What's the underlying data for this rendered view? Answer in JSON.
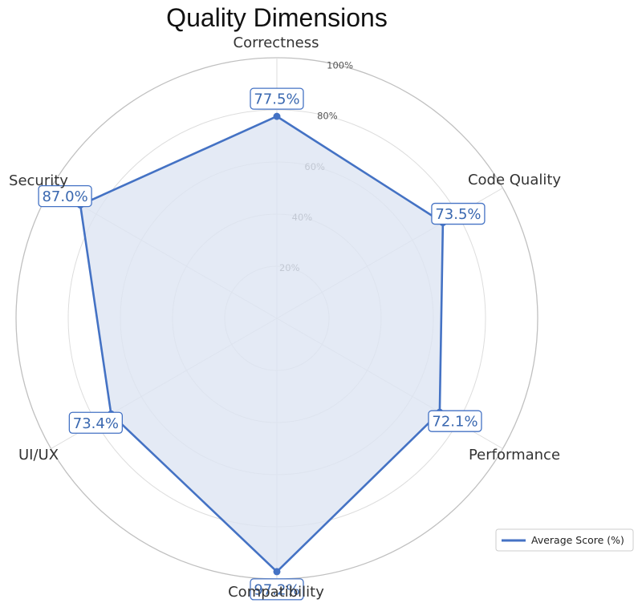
{
  "chart_data": {
    "type": "radar",
    "title": "Quality Dimensions",
    "categories": [
      "Correctness",
      "Code Quality",
      "Performance",
      "Compatibility",
      "UI/UX",
      "Security"
    ],
    "series": [
      {
        "name": "Average Score (%)",
        "values": [
          77.5,
          73.5,
          72.1,
          97.2,
          73.4,
          87.0
        ],
        "value_labels": [
          "77.5%",
          "73.5%",
          "72.1%",
          "97.2%",
          "73.4%",
          "87.0%"
        ],
        "color": "#4472c4"
      }
    ],
    "radial_range": [
      0,
      100
    ],
    "radial_ticks": [
      {
        "value": 20,
        "label": "20%"
      },
      {
        "value": 40,
        "label": "40%"
      },
      {
        "value": 60,
        "label": "60%"
      },
      {
        "value": 80,
        "label": "80%"
      },
      {
        "value": 100,
        "label": "100%"
      }
    ],
    "grid": true,
    "legend_position": "bottom-right",
    "colors": {
      "line": "#4472c4",
      "fill": "#dde5f3",
      "label_text": "#3a68b0",
      "grid": "#dddddd",
      "outer_ring": "#c0c0c0"
    }
  }
}
